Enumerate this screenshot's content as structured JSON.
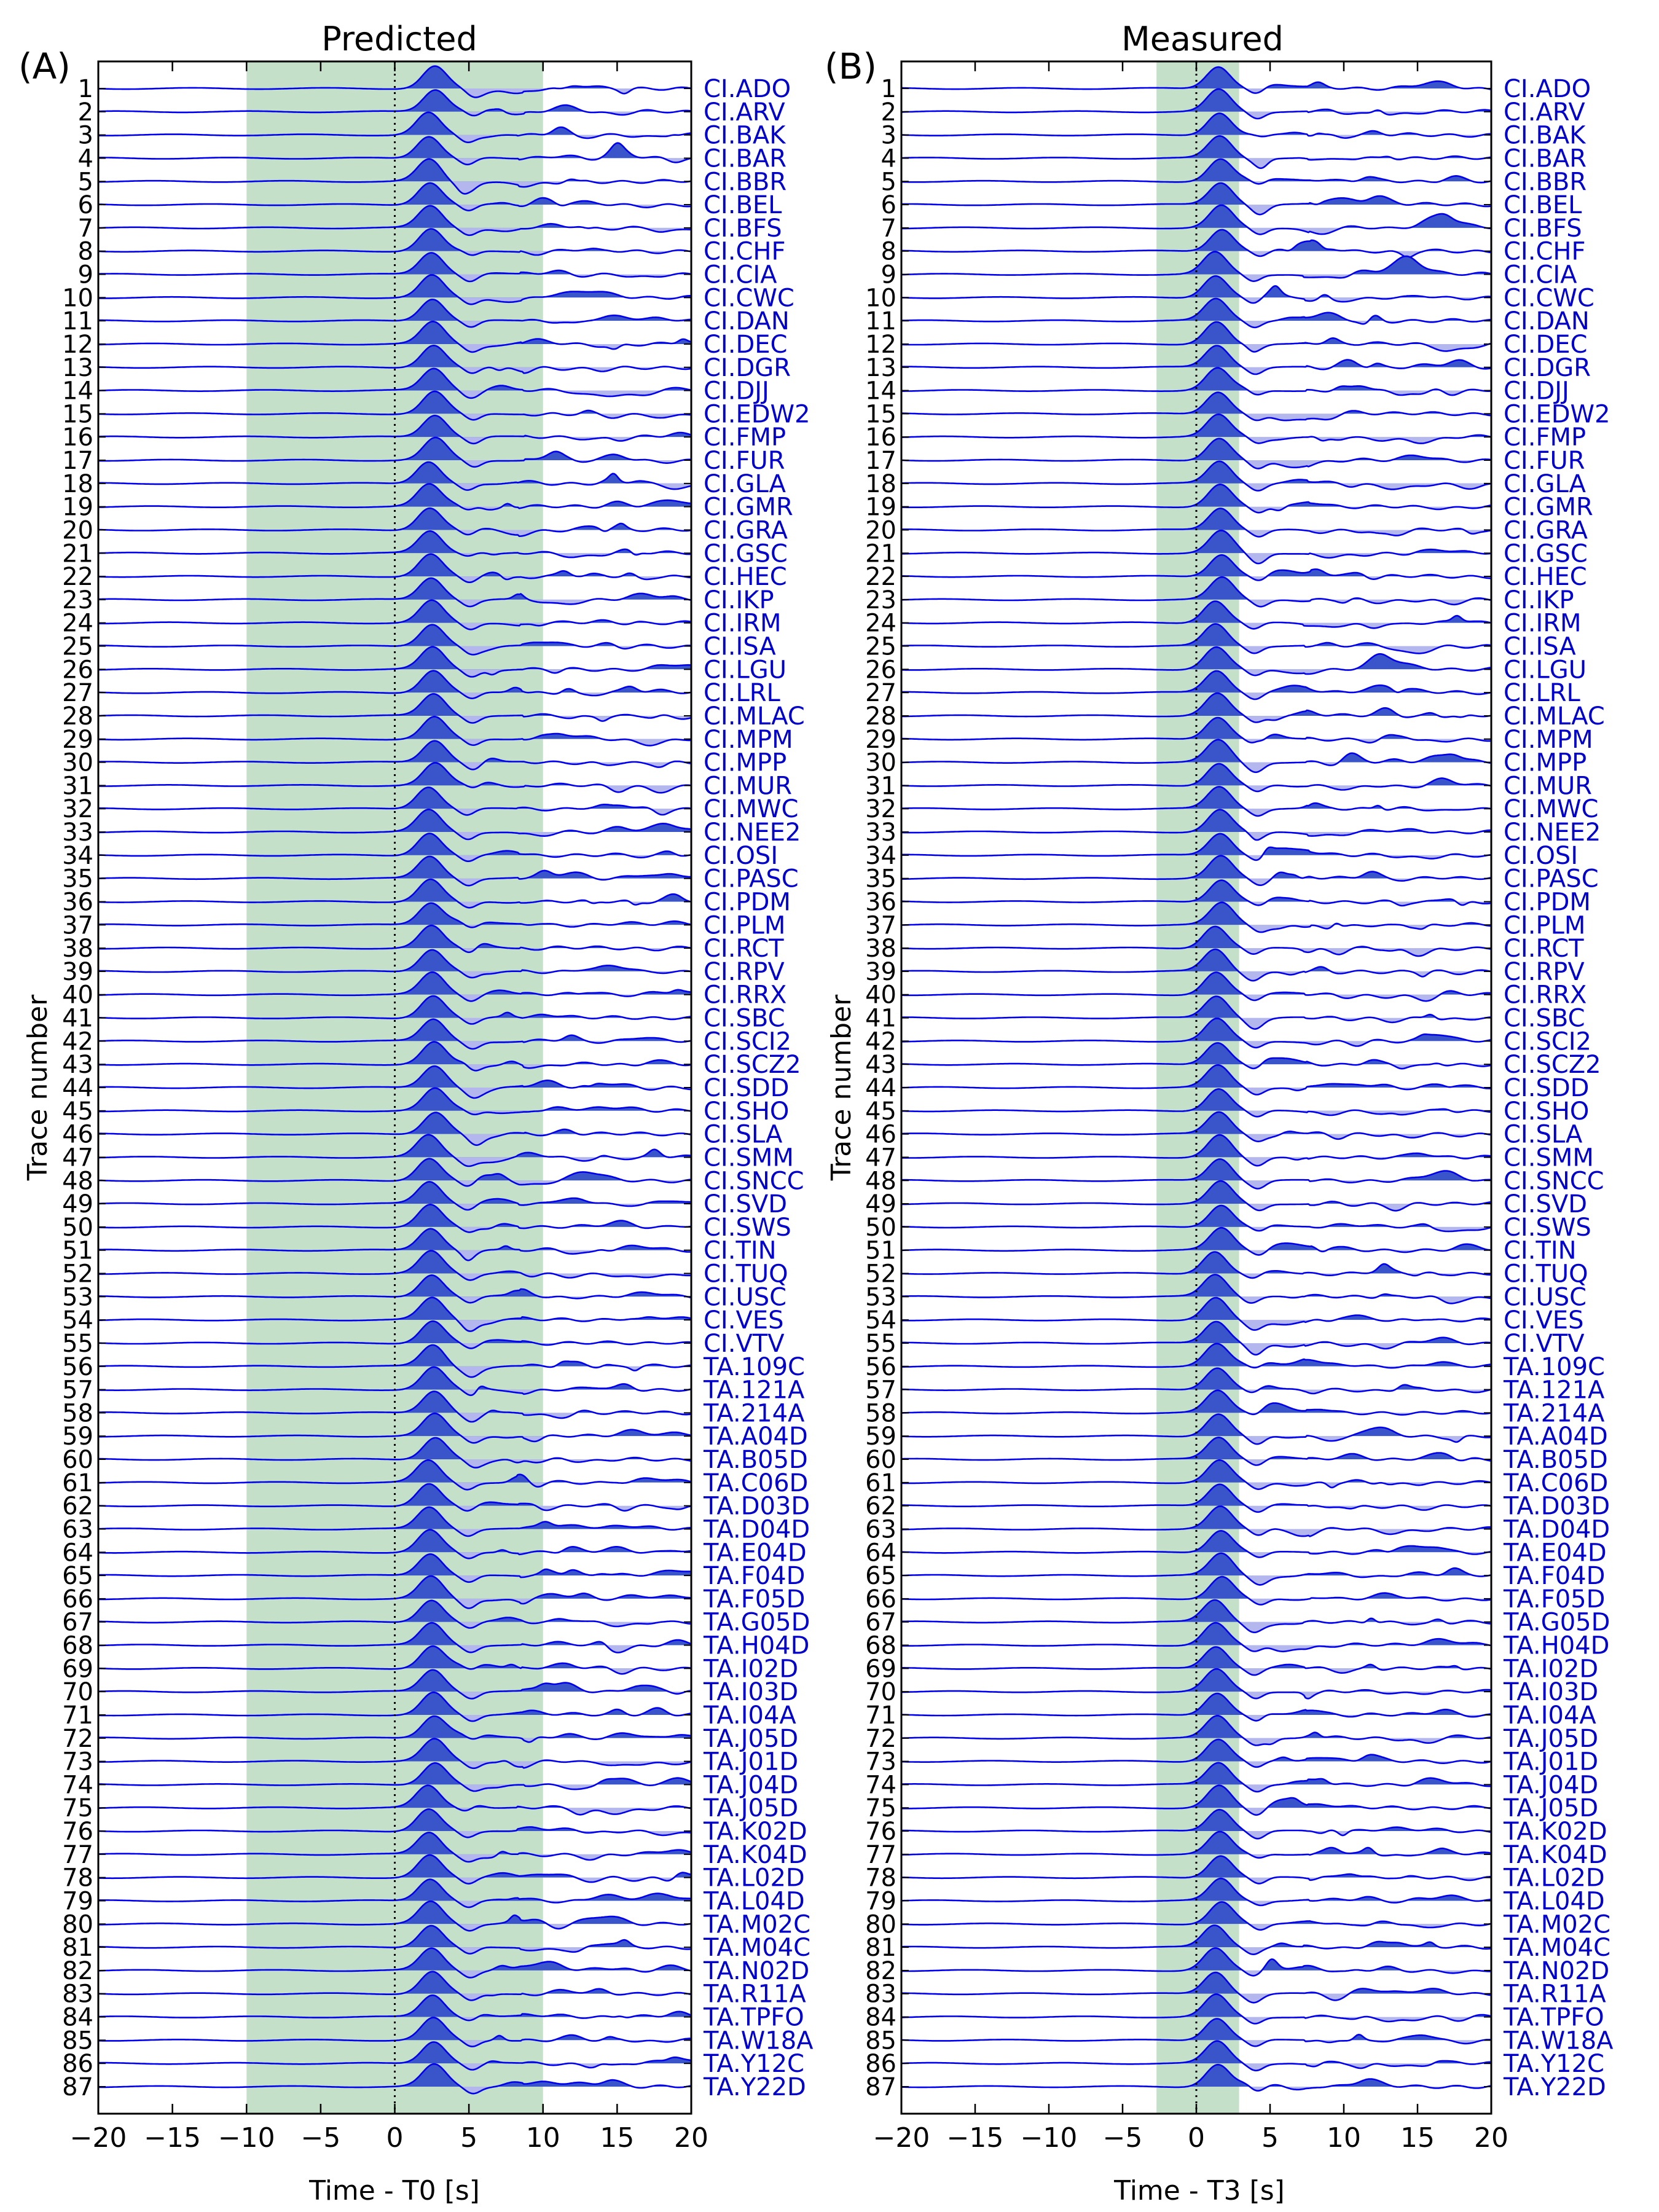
{
  "colors": {
    "trace": "#0000ee",
    "fill_positive": "#3a55c9",
    "fill_negative": "#b4b6ee",
    "window": "#c5e0c8",
    "station_text": "#0000cc",
    "axis": "#000000"
  },
  "stations": [
    "CI.ADO",
    "CI.ARV",
    "CI.BAK",
    "CI.BAR",
    "CI.BBR",
    "CI.BEL",
    "CI.BFS",
    "CI.CHF",
    "CI.CIA",
    "CI.CWC",
    "CI.DAN",
    "CI.DEC",
    "CI.DGR",
    "CI.DJJ",
    "CI.EDW2",
    "CI.FMP",
    "CI.FUR",
    "CI.GLA",
    "CI.GMR",
    "CI.GRA",
    "CI.GSC",
    "CI.HEC",
    "CI.IKP",
    "CI.IRM",
    "CI.ISA",
    "CI.LGU",
    "CI.LRL",
    "CI.MLAC",
    "CI.MPM",
    "CI.MPP",
    "CI.MUR",
    "CI.MWC",
    "CI.NEE2",
    "CI.OSI",
    "CI.PASC",
    "CI.PDM",
    "CI.PLM",
    "CI.RCT",
    "CI.RPV",
    "CI.RRX",
    "CI.SBC",
    "CI.SCI2",
    "CI.SCZ2",
    "CI.SDD",
    "CI.SHO",
    "CI.SLA",
    "CI.SMM",
    "CI.SNCC",
    "CI.SVD",
    "CI.SWS",
    "CI.TIN",
    "CI.TUQ",
    "CI.USC",
    "CI.VES",
    "CI.VTV",
    "TA.109C",
    "TA.121A",
    "TA.214A",
    "TA.A04D",
    "TA.B05D",
    "TA.C06D",
    "TA.D03D",
    "TA.D04D",
    "TA.E04D",
    "TA.F04D",
    "TA.F05D",
    "TA.G05D",
    "TA.H04D",
    "TA.I02D",
    "TA.I03D",
    "TA.I04A",
    "TA.J05D",
    "TA.J01D",
    "TA.J04D",
    "TA.J05D",
    "TA.K02D",
    "TA.K04D",
    "TA.L02D",
    "TA.L04D",
    "TA.M02C",
    "TA.M04C",
    "TA.N02D",
    "TA.R11A",
    "TA.TPFO",
    "TA.W18A",
    "TA.Y12C",
    "TA.Y22D"
  ],
  "chart_data": [
    {
      "panel_id": "(A)",
      "title": "Predicted",
      "type": "line",
      "xlabel": "Time - T0 [s]",
      "ylabel": "Trace number",
      "xlim": [
        -20,
        20
      ],
      "xticks": [
        -20,
        -15,
        -10,
        -5,
        0,
        5,
        10,
        15,
        20
      ],
      "xtick_labels": [
        "−20",
        "−15",
        "−10",
        "−5",
        "0",
        "5",
        "10",
        "15",
        "20"
      ],
      "trace_count": 87,
      "shaded_window": [
        -10,
        10
      ],
      "reference_line_x": 0,
      "main_pulse_peak_s": 2.5,
      "grid": false,
      "legend": "none"
    },
    {
      "panel_id": "(B)",
      "title": "Measured",
      "type": "line",
      "xlabel": "Time - T3 [s]",
      "ylabel": "Trace number",
      "xlim": [
        -20,
        20
      ],
      "xticks": [
        -20,
        -15,
        -10,
        -5,
        0,
        5,
        10,
        15,
        20
      ],
      "xtick_labels": [
        "−20",
        "−15",
        "−10",
        "−5",
        "0",
        "5",
        "10",
        "15",
        "20"
      ],
      "trace_count": 87,
      "shaded_window": [
        -2.7,
        2.9
      ],
      "reference_line_x": 0,
      "main_pulse_peak_s": 1.5,
      "grid": false,
      "legend": "none"
    }
  ]
}
